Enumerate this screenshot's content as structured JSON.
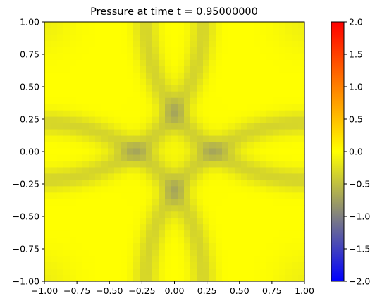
{
  "chart_data": {
    "type": "heatmap",
    "title": "Pressure at time t =     0.95000000",
    "xlabel": "",
    "ylabel": "",
    "xlim": [
      -1.0,
      1.0
    ],
    "ylim": [
      -1.0,
      1.0
    ],
    "x_ticks": [
      -1.0,
      -0.75,
      -0.5,
      -0.25,
      0.0,
      0.25,
      0.5,
      0.75,
      1.0
    ],
    "x_tick_labels": [
      "−1.00",
      "−0.75",
      "−0.50",
      "−0.25",
      "0.00",
      "0.25",
      "0.50",
      "0.75",
      "1.00"
    ],
    "y_ticks": [
      -1.0,
      -0.75,
      -0.5,
      -0.25,
      0.0,
      0.25,
      0.5,
      0.75,
      1.0
    ],
    "y_tick_labels": [
      "−1.00",
      "−0.75",
      "−0.50",
      "−0.25",
      "0.00",
      "0.25",
      "0.50",
      "0.75",
      "1.00"
    ],
    "grid": false,
    "grid_size": 41,
    "field": {
      "description_of_values": "pressure field on a square grid",
      "background_value": 0.0,
      "corner_arc_radius": 1.22,
      "corner_arc_width": 0.09,
      "corner_arc_min_value": -0.34,
      "center_value": -0.04,
      "corner_value": -0.12
    },
    "colorbar": {
      "vmin": -2.0,
      "vmax": 2.0,
      "ticks": [
        -2.0,
        -1.5,
        -1.0,
        -0.5,
        0.0,
        0.5,
        1.0,
        1.5,
        2.0
      ],
      "tick_labels": [
        "−2.0",
        "−1.5",
        "−1.0",
        "−0.5",
        "0.0",
        "0.5",
        "1.0",
        "1.5",
        "2.0"
      ],
      "colormap": [
        {
          "value": -2.0,
          "color": "#0000ff"
        },
        {
          "value": -1.0,
          "color": "#808080"
        },
        {
          "value": 0.0,
          "color": "#ffff00"
        },
        {
          "value": 2.0,
          "color": "#ff0000"
        }
      ]
    }
  }
}
